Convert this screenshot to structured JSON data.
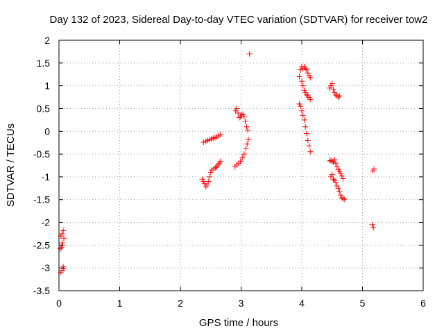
{
  "chart_data": {
    "type": "scatter",
    "title": "Day 132 of 2023, Sidereal Day-to-day VTEC variation (SDTVAR) for receiver tow2",
    "xlabel": "GPS time / hours",
    "ylabel": "SDTVAR / TECUs",
    "xlim": [
      0,
      6
    ],
    "ylim": [
      -3.5,
      2
    ],
    "xticks": [
      0,
      1,
      2,
      3,
      4,
      5,
      6
    ],
    "yticks": [
      2,
      1.5,
      1,
      0.5,
      0,
      -0.5,
      -1,
      -1.5,
      -2,
      -2.5,
      -3,
      -3.5
    ],
    "xtick_labels": [
      "0",
      "1",
      "2",
      "3",
      "4",
      "5",
      "6"
    ],
    "ytick_labels": [
      "2",
      "1.5",
      "1",
      "0.5",
      "0",
      "-0.5",
      "-1",
      "-1.5",
      "-2",
      "-2.5",
      "-3",
      "-3.5"
    ],
    "grid": true,
    "marker": "plus",
    "marker_color": "#ff0000",
    "series": [
      {
        "points": [
          [
            0.03,
            -2.3
          ],
          [
            0.05,
            -2.25
          ],
          [
            0.07,
            -2.18
          ],
          [
            0.08,
            -2.35
          ],
          [
            0.06,
            -2.5
          ],
          [
            0.04,
            -2.55
          ],
          [
            0.02,
            -2.58
          ],
          [
            0.05,
            -2.45
          ],
          [
            0.03,
            -3.1
          ],
          [
            0.05,
            -3.05
          ],
          [
            0.07,
            -2.97
          ],
          [
            0.08,
            -3.02
          ],
          [
            2.36,
            -1.05
          ],
          [
            2.38,
            -1.1
          ],
          [
            2.4,
            -1.15
          ],
          [
            2.42,
            -1.22
          ],
          [
            2.44,
            -1.18
          ],
          [
            2.46,
            -1.1
          ],
          [
            2.48,
            -1.0
          ],
          [
            2.5,
            -0.9
          ],
          [
            2.52,
            -0.85
          ],
          [
            2.55,
            -0.82
          ],
          [
            2.58,
            -0.8
          ],
          [
            2.6,
            -0.78
          ],
          [
            2.62,
            -0.74
          ],
          [
            2.64,
            -0.7
          ],
          [
            2.66,
            -0.66
          ],
          [
            2.38,
            -0.24
          ],
          [
            2.42,
            -0.22
          ],
          [
            2.45,
            -0.2
          ],
          [
            2.48,
            -0.18
          ],
          [
            2.51,
            -0.17
          ],
          [
            2.54,
            -0.15
          ],
          [
            2.57,
            -0.14
          ],
          [
            2.6,
            -0.13
          ],
          [
            2.63,
            -0.1
          ],
          [
            2.66,
            -0.07
          ],
          [
            2.9,
            -0.78
          ],
          [
            2.93,
            -0.74
          ],
          [
            2.96,
            -0.7
          ],
          [
            2.99,
            -0.66
          ],
          [
            3.02,
            -0.58
          ],
          [
            3.05,
            -0.5
          ],
          [
            3.08,
            -0.38
          ],
          [
            3.1,
            -0.28
          ],
          [
            3.12,
            -0.18
          ],
          [
            2.91,
            0.45
          ],
          [
            2.93,
            0.5
          ],
          [
            2.95,
            0.4
          ],
          [
            2.97,
            0.3
          ],
          [
            2.99,
            0.32
          ],
          [
            3.01,
            0.36
          ],
          [
            3.03,
            0.38
          ],
          [
            3.05,
            0.32
          ],
          [
            3.07,
            0.22
          ],
          [
            3.09,
            0.1
          ],
          [
            3.11,
            0.02
          ],
          [
            3.14,
            1.7
          ],
          [
            3.96,
            0.6
          ],
          [
            3.98,
            0.55
          ],
          [
            4.0,
            0.45
          ],
          [
            4.02,
            0.35
          ],
          [
            4.04,
            0.25
          ],
          [
            4.06,
            0.1
          ],
          [
            4.08,
            -0.05
          ],
          [
            4.1,
            -0.2
          ],
          [
            4.12,
            -0.32
          ],
          [
            4.14,
            -0.45
          ],
          [
            3.96,
            1.2
          ],
          [
            3.98,
            1.35
          ],
          [
            4.0,
            1.42
          ],
          [
            4.02,
            1.38
          ],
          [
            4.04,
            1.42
          ],
          [
            4.06,
            1.38
          ],
          [
            4.08,
            1.35
          ],
          [
            4.1,
            1.28
          ],
          [
            4.12,
            1.22
          ],
          [
            4.14,
            1.18
          ],
          [
            4.0,
            1.1
          ],
          [
            4.02,
            1.0
          ],
          [
            4.04,
            0.9
          ],
          [
            4.06,
            0.85
          ],
          [
            4.08,
            0.8
          ],
          [
            4.1,
            0.78
          ],
          [
            4.12,
            0.74
          ],
          [
            4.14,
            0.7
          ],
          [
            4.46,
            0.95
          ],
          [
            4.48,
            1.0
          ],
          [
            4.5,
            1.05
          ],
          [
            4.52,
            0.92
          ],
          [
            4.54,
            0.85
          ],
          [
            4.56,
            0.8
          ],
          [
            4.58,
            0.78
          ],
          [
            4.6,
            0.75
          ],
          [
            4.62,
            0.78
          ],
          [
            4.46,
            -0.65
          ],
          [
            4.48,
            -0.64
          ],
          [
            4.5,
            -0.66
          ],
          [
            4.52,
            -0.68
          ],
          [
            4.54,
            -0.62
          ],
          [
            4.56,
            -0.7
          ],
          [
            4.58,
            -0.78
          ],
          [
            4.6,
            -0.84
          ],
          [
            4.62,
            -0.88
          ],
          [
            4.64,
            -0.92
          ],
          [
            4.66,
            -0.98
          ],
          [
            4.68,
            -1.04
          ],
          [
            4.48,
            -1.0
          ],
          [
            4.5,
            -0.95
          ],
          [
            4.52,
            -1.05
          ],
          [
            4.54,
            -1.08
          ],
          [
            4.56,
            -1.12
          ],
          [
            4.58,
            -1.2
          ],
          [
            4.6,
            -1.25
          ],
          [
            4.62,
            -1.32
          ],
          [
            4.64,
            -1.4
          ],
          [
            4.66,
            -1.46
          ],
          [
            4.68,
            -1.48
          ],
          [
            4.7,
            -1.49
          ],
          [
            5.16,
            -2.05
          ],
          [
            5.18,
            -2.12
          ],
          [
            5.17,
            -0.87
          ],
          [
            5.19,
            -0.83
          ]
        ]
      }
    ]
  }
}
